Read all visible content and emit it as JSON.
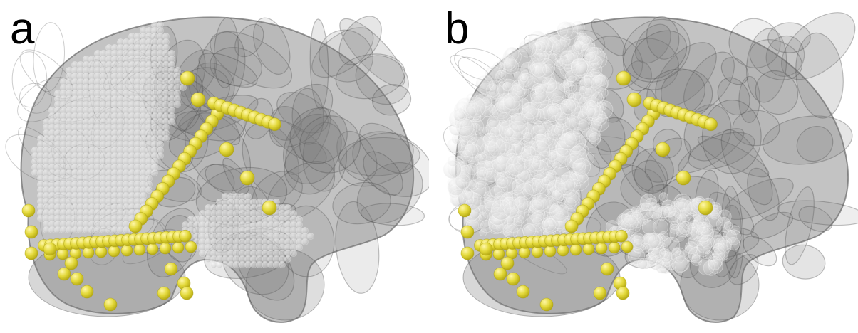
{
  "panels": [
    {
      "id": "a",
      "label": "a"
    },
    {
      "id": "b",
      "label": "b"
    }
  ],
  "colors": {
    "brain_tissue": "#7a7a7a",
    "brain_outline": "#555555",
    "region_sphere": "#f2f2f2",
    "electrode": "#e3d93b",
    "electrode_highlight": "#fff7a8",
    "background": "#ffffff"
  },
  "icons": {
    "brain": "brain-volume-icon",
    "electrode": "electrode-sphere-icon"
  }
}
